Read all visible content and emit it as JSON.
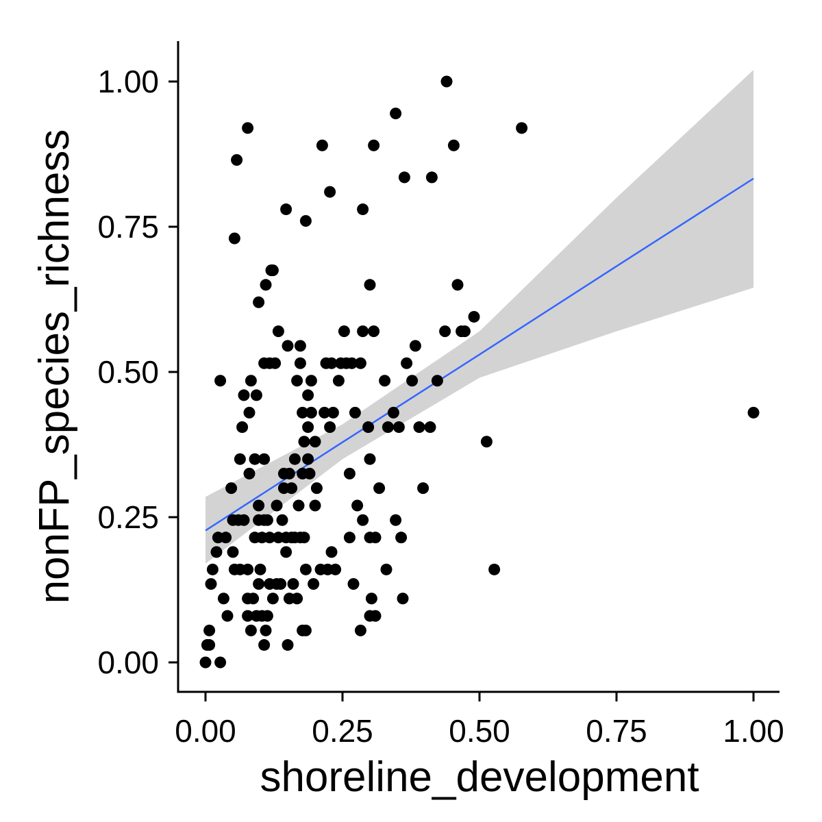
{
  "chart_data": {
    "type": "scatter",
    "title": "",
    "xlabel": "shoreline_development",
    "ylabel": "nonFP_species_richness",
    "xlim": [
      -0.05,
      1.05
    ],
    "ylim": [
      -0.05,
      1.07
    ],
    "x_ticks": [
      0.0,
      0.25,
      0.5,
      0.75,
      1.0
    ],
    "x_tick_labels": [
      "0.00",
      "0.25",
      "0.50",
      "0.75",
      "1.00"
    ],
    "y_ticks": [
      0.0,
      0.25,
      0.5,
      0.75,
      1.0
    ],
    "y_tick_labels": [
      "0.00",
      "0.25",
      "0.50",
      "0.75",
      "1.00"
    ],
    "grid": false,
    "legend": "none",
    "colors": {
      "points": "#000000",
      "fit_line": "#3366FF",
      "ci_band": "#D3D3D3",
      "axis": "#000000"
    },
    "fit": {
      "method": "linear",
      "x": [
        0.0,
        0.25,
        0.5,
        0.75,
        1.0
      ],
      "y": [
        0.227,
        0.379,
        0.53,
        0.682,
        0.833
      ],
      "ci_low": [
        0.17,
        0.35,
        0.49,
        0.57,
        0.645
      ],
      "ci_high": [
        0.285,
        0.41,
        0.57,
        0.8,
        1.02
      ]
    },
    "points": [
      [
        0.0,
        0.0
      ],
      [
        0.003,
        0.03
      ],
      [
        0.007,
        0.03
      ],
      [
        0.007,
        0.055
      ],
      [
        0.01,
        0.135
      ],
      [
        0.013,
        0.16
      ],
      [
        0.02,
        0.19
      ],
      [
        0.023,
        0.215
      ],
      [
        0.027,
        0.0
      ],
      [
        0.027,
        0.485
      ],
      [
        0.033,
        0.11
      ],
      [
        0.037,
        0.215
      ],
      [
        0.04,
        0.08
      ],
      [
        0.047,
        0.3
      ],
      [
        0.05,
        0.19
      ],
      [
        0.05,
        0.245
      ],
      [
        0.053,
        0.16
      ],
      [
        0.053,
        0.73
      ],
      [
        0.057,
        0.865
      ],
      [
        0.06,
        0.245
      ],
      [
        0.063,
        0.16
      ],
      [
        0.063,
        0.35
      ],
      [
        0.067,
        0.405
      ],
      [
        0.07,
        0.46
      ],
      [
        0.07,
        0.245
      ],
      [
        0.077,
        0.08
      ],
      [
        0.077,
        0.11
      ],
      [
        0.077,
        0.16
      ],
      [
        0.077,
        0.92
      ],
      [
        0.08,
        0.325
      ],
      [
        0.08,
        0.43
      ],
      [
        0.083,
        0.055
      ],
      [
        0.083,
        0.485
      ],
      [
        0.087,
        0.11
      ],
      [
        0.09,
        0.215
      ],
      [
        0.09,
        0.35
      ],
      [
        0.093,
        0.08
      ],
      [
        0.093,
        0.46
      ],
      [
        0.097,
        0.135
      ],
      [
        0.097,
        0.245
      ],
      [
        0.097,
        0.27
      ],
      [
        0.097,
        0.62
      ],
      [
        0.1,
        0.16
      ],
      [
        0.103,
        0.08
      ],
      [
        0.103,
        0.215
      ],
      [
        0.107,
        0.03
      ],
      [
        0.107,
        0.245
      ],
      [
        0.107,
        0.35
      ],
      [
        0.107,
        0.515
      ],
      [
        0.11,
        0.055
      ],
      [
        0.11,
        0.65
      ],
      [
        0.113,
        0.08
      ],
      [
        0.113,
        0.245
      ],
      [
        0.117,
        0.135
      ],
      [
        0.117,
        0.215
      ],
      [
        0.117,
        0.515
      ],
      [
        0.12,
        0.675
      ],
      [
        0.123,
        0.11
      ],
      [
        0.123,
        0.675
      ],
      [
        0.127,
        0.515
      ],
      [
        0.13,
        0.135
      ],
      [
        0.13,
        0.27
      ],
      [
        0.133,
        0.215
      ],
      [
        0.133,
        0.57
      ],
      [
        0.137,
        0.135
      ],
      [
        0.14,
        0.245
      ],
      [
        0.143,
        0.3
      ],
      [
        0.143,
        0.325
      ],
      [
        0.147,
        0.19
      ],
      [
        0.147,
        0.215
      ],
      [
        0.147,
        0.78
      ],
      [
        0.15,
        0.03
      ],
      [
        0.15,
        0.545
      ],
      [
        0.153,
        0.11
      ],
      [
        0.153,
        0.325
      ],
      [
        0.157,
        0.215
      ],
      [
        0.157,
        0.3
      ],
      [
        0.16,
        0.135
      ],
      [
        0.163,
        0.215
      ],
      [
        0.163,
        0.35
      ],
      [
        0.167,
        0.11
      ],
      [
        0.167,
        0.485
      ],
      [
        0.17,
        0.27
      ],
      [
        0.173,
        0.215
      ],
      [
        0.173,
        0.515
      ],
      [
        0.173,
        0.545
      ],
      [
        0.177,
        0.055
      ],
      [
        0.177,
        0.325
      ],
      [
        0.177,
        0.43
      ],
      [
        0.18,
        0.215
      ],
      [
        0.18,
        0.38
      ],
      [
        0.183,
        0.055
      ],
      [
        0.183,
        0.16
      ],
      [
        0.183,
        0.76
      ],
      [
        0.187,
        0.35
      ],
      [
        0.187,
        0.405
      ],
      [
        0.187,
        0.46
      ],
      [
        0.19,
        0.325
      ],
      [
        0.193,
        0.43
      ],
      [
        0.193,
        0.485
      ],
      [
        0.197,
        0.135
      ],
      [
        0.2,
        0.27
      ],
      [
        0.2,
        0.38
      ],
      [
        0.203,
        0.3
      ],
      [
        0.21,
        0.16
      ],
      [
        0.213,
        0.89
      ],
      [
        0.217,
        0.43
      ],
      [
        0.22,
        0.515
      ],
      [
        0.223,
        0.16
      ],
      [
        0.227,
        0.405
      ],
      [
        0.227,
        0.81
      ],
      [
        0.23,
        0.19
      ],
      [
        0.23,
        0.515
      ],
      [
        0.233,
        0.43
      ],
      [
        0.237,
        0.16
      ],
      [
        0.243,
        0.485
      ],
      [
        0.247,
        0.515
      ],
      [
        0.253,
        0.57
      ],
      [
        0.257,
        0.515
      ],
      [
        0.263,
        0.215
      ],
      [
        0.263,
        0.325
      ],
      [
        0.267,
        0.515
      ],
      [
        0.27,
        0.135
      ],
      [
        0.273,
        0.43
      ],
      [
        0.277,
        0.27
      ],
      [
        0.283,
        0.055
      ],
      [
        0.283,
        0.515
      ],
      [
        0.287,
        0.245
      ],
      [
        0.287,
        0.57
      ],
      [
        0.287,
        0.78
      ],
      [
        0.297,
        0.405
      ],
      [
        0.3,
        0.08
      ],
      [
        0.3,
        0.215
      ],
      [
        0.3,
        0.35
      ],
      [
        0.3,
        0.65
      ],
      [
        0.303,
        0.11
      ],
      [
        0.307,
        0.57
      ],
      [
        0.307,
        0.89
      ],
      [
        0.31,
        0.08
      ],
      [
        0.31,
        0.215
      ],
      [
        0.317,
        0.3
      ],
      [
        0.327,
        0.485
      ],
      [
        0.33,
        0.16
      ],
      [
        0.333,
        0.405
      ],
      [
        0.343,
        0.43
      ],
      [
        0.347,
        0.245
      ],
      [
        0.347,
        0.945
      ],
      [
        0.353,
        0.405
      ],
      [
        0.357,
        0.215
      ],
      [
        0.36,
        0.11
      ],
      [
        0.363,
        0.835
      ],
      [
        0.367,
        0.515
      ],
      [
        0.377,
        0.485
      ],
      [
        0.383,
        0.545
      ],
      [
        0.39,
        0.405
      ],
      [
        0.397,
        0.3
      ],
      [
        0.41,
        0.405
      ],
      [
        0.413,
        0.835
      ],
      [
        0.423,
        0.485
      ],
      [
        0.437,
        0.57
      ],
      [
        0.44,
        1.0
      ],
      [
        0.453,
        0.89
      ],
      [
        0.46,
        0.65
      ],
      [
        0.467,
        0.57
      ],
      [
        0.473,
        0.57
      ],
      [
        0.49,
        0.595
      ],
      [
        0.513,
        0.38
      ],
      [
        0.527,
        0.16
      ],
      [
        0.577,
        0.92
      ],
      [
        1.0,
        0.43
      ]
    ]
  }
}
